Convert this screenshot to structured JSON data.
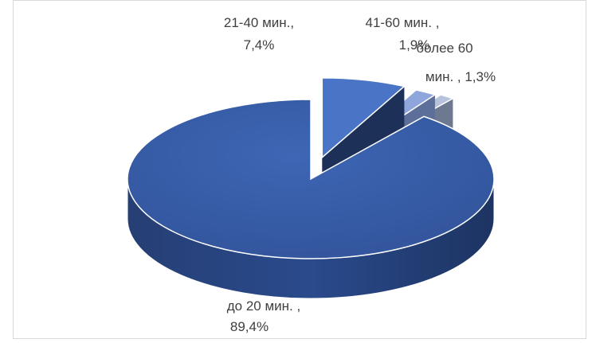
{
  "chart_data": {
    "type": "pie",
    "title": "",
    "categories": [
      "до 20 мин.",
      "21-40 мин.",
      "41-60 мин.",
      "более 60 мин."
    ],
    "values": [
      89.4,
      7.4,
      1.9,
      1.3
    ],
    "unit": "%",
    "labels": [
      {
        "line1": "до 20 мин. ,",
        "line2": "89,4%"
      },
      {
        "line1": "21-40 мин.,",
        "line2": "7,4%"
      },
      {
        "line1": "41-60 мин. ,",
        "line2": "1,9%"
      },
      {
        "line1": "более 60",
        "line2": "мин. , 1,3%"
      }
    ],
    "colors": [
      "#3a5fa8",
      "#4a74c6",
      "#8fa6dc",
      "#b7c3dc"
    ],
    "legend": "none",
    "three_d": true
  }
}
